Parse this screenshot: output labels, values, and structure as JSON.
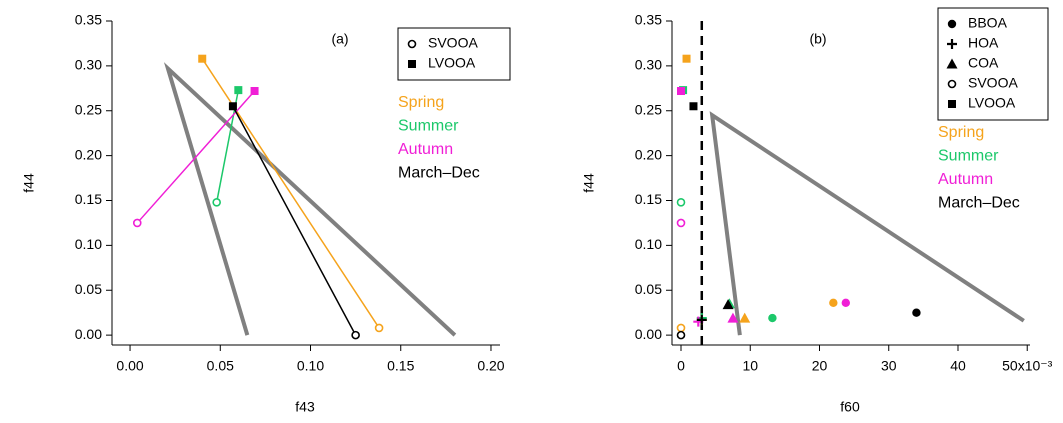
{
  "chart_data": [
    {
      "type": "scatter",
      "panel_label": "(a)",
      "x_label": "f43",
      "y_label": "f44",
      "xlim": [
        -0.01,
        0.205
      ],
      "ylim": [
        -0.011,
        0.35
      ],
      "xticks": [
        {
          "value": 0,
          "label": "0.00"
        },
        {
          "value": 0.05,
          "label": "0.05"
        },
        {
          "value": 0.1,
          "label": "0.10"
        },
        {
          "value": 0.15,
          "label": "0.15"
        },
        {
          "value": 0.2,
          "label": "0.20"
        }
      ],
      "yticks": [
        {
          "value": 0,
          "label": "0.00"
        },
        {
          "value": 0.05,
          "label": "0.05"
        },
        {
          "value": 0.1,
          "label": "0.10"
        },
        {
          "value": 0.15,
          "label": "0.15"
        },
        {
          "value": 0.2,
          "label": "0.20"
        },
        {
          "value": 0.25,
          "label": "0.25"
        },
        {
          "value": 0.3,
          "label": "0.30"
        },
        {
          "value": 0.35,
          "label": "0.35"
        }
      ],
      "marker_legend": [
        {
          "label": "SVOOA",
          "marker": "open-circle"
        },
        {
          "label": "LVOOA",
          "marker": "filled-square"
        }
      ],
      "connect": true,
      "series": [
        {
          "name": "Spring",
          "color": "#f5a31c",
          "x": [
            0.138,
            0.04
          ],
          "values": [
            0.008,
            0.308
          ]
        },
        {
          "name": "Summer",
          "color": "#1cc86a",
          "x": [
            0.048,
            0.06
          ],
          "values": [
            0.148,
            0.273
          ]
        },
        {
          "name": "Autumn",
          "color": "#f01fd6",
          "x": [
            0.004,
            0.069
          ],
          "values": [
            0.125,
            0.272
          ]
        },
        {
          "name": "March–Dec",
          "color": "#000000",
          "x": [
            0.125,
            0.057
          ],
          "values": [
            0.0,
            0.255
          ]
        }
      ],
      "reference_lines": [
        {
          "color": "#808080",
          "x": [
            0.065,
            0.021,
            0.18
          ],
          "values": [
            0.0,
            0.297,
            0.0
          ]
        }
      ]
    },
    {
      "type": "scatter",
      "panel_label": "(b)",
      "x_label": "f60",
      "y_label": "f44",
      "xlim": [
        -1.3,
        50.4
      ],
      "ylim": [
        -0.011,
        0.35
      ],
      "xticks": [
        0,
        10,
        20,
        30,
        40,
        {
          "value": 50,
          "label": "50x10⁻³"
        }
      ],
      "yticks": [
        {
          "value": 0,
          "label": "0.00"
        },
        {
          "value": 0.05,
          "label": "0.05"
        },
        {
          "value": 0.1,
          "label": "0.10"
        },
        {
          "value": 0.15,
          "label": "0.15"
        },
        {
          "value": 0.2,
          "label": "0.20"
        },
        {
          "value": 0.25,
          "label": "0.25"
        },
        {
          "value": 0.3,
          "label": "0.30"
        },
        {
          "value": 0.35,
          "label": "0.35"
        }
      ],
      "marker_legend": [
        {
          "label": "BBOA",
          "marker": "filled-circle"
        },
        {
          "label": "HOA",
          "marker": "plus"
        },
        {
          "label": "COA",
          "marker": "filled-triangle"
        },
        {
          "label": "SVOOA",
          "marker": "open-circle"
        },
        {
          "label": "LVOOA",
          "marker": "filled-square"
        }
      ],
      "connect": false,
      "series": [
        {
          "name": "Spring",
          "color": "#f5a31c",
          "x": [
            22,
            3,
            9.2,
            0,
            0.8
          ],
          "values": [
            0.036,
            0.017,
            0.019,
            0.008,
            0.308
          ]
        },
        {
          "name": "Summer",
          "color": "#1cc86a",
          "x": [
            13.2,
            3,
            7,
            0,
            0.3
          ],
          "values": [
            0.019,
            0.019,
            0.035,
            0.148,
            0.273
          ]
        },
        {
          "name": "Autumn",
          "color": "#f01fd6",
          "x": [
            23.8,
            2.5,
            7.5,
            0,
            0
          ],
          "values": [
            0.036,
            0.015,
            0.019,
            0.125,
            0.272
          ]
        },
        {
          "name": "March–Dec",
          "color": "#000000",
          "x": [
            34,
            3,
            6.8,
            0,
            1.8
          ],
          "values": [
            0.025,
            0.017,
            0.034,
            0.0,
            0.255
          ]
        }
      ],
      "reference_lines": [
        {
          "color": "#808080",
          "x": [
            8.5,
            4.5,
            49.5
          ],
          "values": [
            0.0,
            0.245,
            0.016
          ]
        },
        {
          "color": "#000000",
          "dash": true,
          "x": [
            3,
            3
          ],
          "values": [
            -0.011,
            0.35
          ]
        }
      ]
    }
  ]
}
